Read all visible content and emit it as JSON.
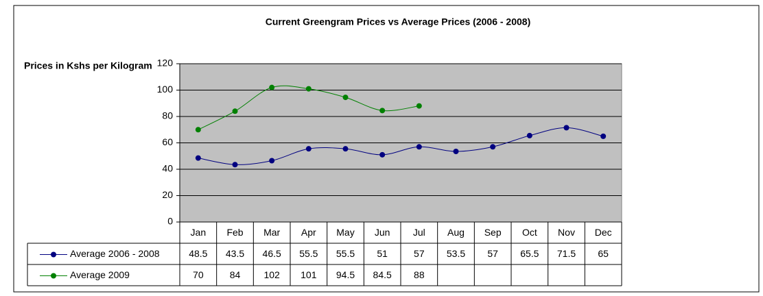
{
  "chart_data": {
    "type": "line",
    "title": "Current Greengram Prices vs Average Prices (2006 - 2008)",
    "y_label": "Prices in Kshs per Kilogram",
    "categories": [
      "Jan",
      "Feb",
      "Mar",
      "Apr",
      "May",
      "Jun",
      "Jul",
      "Aug",
      "Sep",
      "Oct",
      "Nov",
      "Dec"
    ],
    "series": [
      {
        "name": "Average 2006 - 2008",
        "color": "#000080",
        "values": [
          48.5,
          43.5,
          46.5,
          55.5,
          55.5,
          51,
          57,
          53.5,
          57,
          65.5,
          71.5,
          65
        ]
      },
      {
        "name": "Average 2009",
        "color": "#008000",
        "values": [
          70,
          84,
          102,
          101,
          94.5,
          84.5,
          88,
          null,
          null,
          null,
          null,
          null
        ]
      }
    ],
    "ylim": [
      0,
      120
    ],
    "yticks": [
      0,
      20,
      40,
      60,
      80,
      100,
      120
    ],
    "grid": true,
    "smooth": true,
    "plot_background": "#c0c0c0",
    "data_table": true
  }
}
